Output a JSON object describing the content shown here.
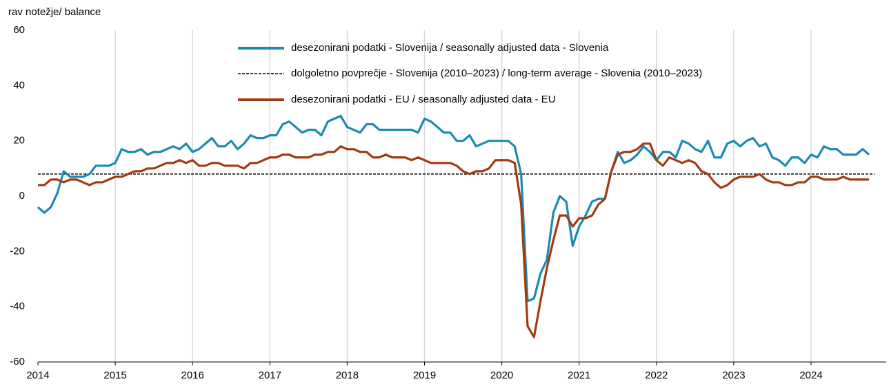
{
  "chart_data": {
    "type": "line",
    "y_label": "rav notežje/ balance",
    "categories": [
      "2014",
      null,
      null,
      null,
      null,
      null,
      null,
      null,
      null,
      null,
      null,
      null,
      "2015",
      null,
      null,
      null,
      null,
      null,
      null,
      null,
      null,
      null,
      null,
      null,
      "2016",
      null,
      null,
      null,
      null,
      null,
      null,
      null,
      null,
      null,
      null,
      null,
      "2017",
      null,
      null,
      null,
      null,
      null,
      null,
      null,
      null,
      null,
      null,
      null,
      "2018",
      null,
      null,
      null,
      null,
      null,
      null,
      null,
      null,
      null,
      null,
      null,
      "2019",
      null,
      null,
      null,
      null,
      null,
      null,
      null,
      null,
      null,
      null,
      null,
      "2020",
      null,
      null,
      null,
      null,
      null,
      null,
      null,
      null,
      null,
      null,
      null,
      "2021",
      null,
      null,
      null,
      null,
      null,
      null,
      null,
      null,
      null,
      null,
      null,
      "2022",
      null,
      null,
      null,
      null,
      null,
      null,
      null,
      null,
      null,
      null,
      null,
      "2023",
      null,
      null,
      null,
      null,
      null,
      null,
      null,
      null,
      null,
      null,
      null,
      "2024",
      null,
      null,
      null,
      null,
      null,
      null,
      null,
      null,
      null
    ],
    "series": [
      {
        "name": "desezonirani podatki - Slovenija / seasonally adjusted data - Slovenia",
        "color": "#1a8bb0",
        "values": [
          -4,
          -6,
          -4,
          1,
          9,
          7,
          7,
          7,
          8,
          11,
          11,
          11,
          12,
          17,
          16,
          16,
          17,
          15,
          16,
          16,
          17,
          18,
          17,
          19,
          16,
          17,
          19,
          21,
          18,
          18,
          20,
          17,
          19,
          22,
          21,
          21,
          22,
          22,
          26,
          27,
          25,
          23,
          24,
          24,
          22,
          27,
          28,
          29,
          25,
          24,
          23,
          26,
          26,
          24,
          24,
          24,
          24,
          24,
          24,
          23,
          28,
          27,
          25,
          23,
          23,
          20,
          20,
          22,
          18,
          19,
          20,
          20,
          20,
          20,
          18,
          8,
          -38,
          -37,
          -28,
          -23,
          -6,
          0,
          -2,
          -18,
          -11,
          -7,
          -2,
          -1,
          -1,
          9,
          16,
          12,
          13,
          15,
          18,
          16,
          13,
          16,
          16,
          14,
          20,
          19,
          17,
          16,
          20,
          14,
          14,
          19,
          20,
          18,
          20,
          21,
          18,
          19,
          14,
          13,
          11,
          14,
          14,
          12,
          15,
          14,
          18,
          17,
          17,
          15,
          15,
          15,
          17,
          15
        ]
      },
      {
        "name": "desezonirani podatki - EU / seasonally adjusted data - EU",
        "color": "#a23a10",
        "values": [
          4,
          4,
          6,
          6,
          5,
          6,
          6,
          5,
          4,
          5,
          5,
          6,
          7,
          7,
          8,
          9,
          9,
          10,
          10,
          11,
          12,
          12,
          13,
          12,
          13,
          11,
          11,
          12,
          12,
          11,
          11,
          11,
          10,
          12,
          12,
          13,
          14,
          14,
          15,
          15,
          14,
          14,
          14,
          15,
          15,
          16,
          16,
          18,
          17,
          17,
          16,
          16,
          14,
          14,
          15,
          14,
          14,
          14,
          13,
          14,
          13,
          12,
          12,
          12,
          12,
          11,
          9,
          8,
          9,
          9,
          10,
          13,
          13,
          13,
          12,
          -3,
          -47,
          -51,
          -38,
          -26,
          -16,
          -7,
          -7,
          -11,
          -8,
          -8,
          -7,
          -3,
          -1,
          9,
          15,
          16,
          16,
          17,
          19,
          19,
          13,
          11,
          14,
          13,
          12,
          13,
          12,
          9,
          8,
          5,
          3,
          4,
          6,
          7,
          7,
          7,
          8,
          6,
          5,
          5,
          4,
          4,
          5,
          5,
          7,
          7,
          6,
          6,
          6,
          7,
          6,
          6,
          6,
          6
        ]
      }
    ],
    "reference_line": {
      "name": "dolgoletno povprečje - Slovenija (2010–2023) / long-term average - Slovenia (2010–2023)",
      "value": 8,
      "color": "#000000"
    },
    "ylim": [
      -60,
      60
    ],
    "yticks": [
      -60,
      -40,
      -20,
      0,
      20,
      40,
      60
    ],
    "grid": true
  }
}
